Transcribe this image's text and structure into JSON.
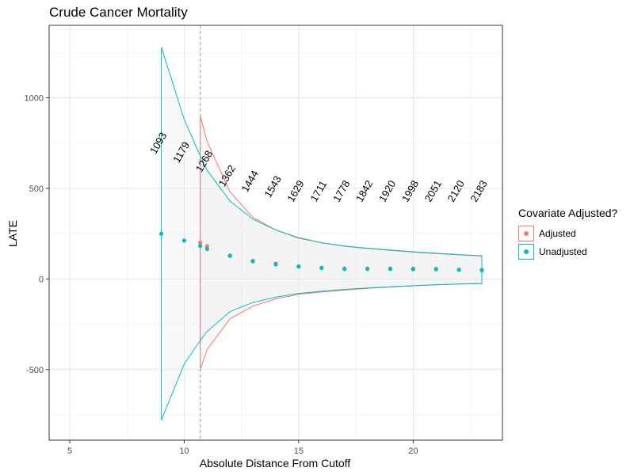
{
  "chart_data": {
    "type": "scatter",
    "title": "Crude Cancer Mortality",
    "xlabel": "Absolute Distance From Cutoff",
    "ylabel": "LATE",
    "xlim": [
      4.1,
      23.9
    ],
    "ylim": [
      -890,
      1400
    ],
    "x_ticks": [
      5,
      10,
      15,
      20
    ],
    "y_ticks": [
      -500,
      0,
      500,
      1000
    ],
    "grid": true,
    "cutoff_line_x": 10.7,
    "legend_title": "Covariate Adjusted?",
    "legend_position": "right",
    "series": [
      {
        "name": "Adjusted",
        "color": "#F8766D",
        "points": [
          {
            "x": 10.7,
            "y": 200
          },
          {
            "x": 11,
            "y": 180
          },
          {
            "x": 12,
            "y": 130
          },
          {
            "x": 13,
            "y": 100
          },
          {
            "x": 14,
            "y": 85
          },
          {
            "x": 15,
            "y": 70
          },
          {
            "x": 16,
            "y": 62
          },
          {
            "x": 17,
            "y": 58
          },
          {
            "x": 18,
            "y": 58
          },
          {
            "x": 19,
            "y": 58
          },
          {
            "x": 20,
            "y": 57
          },
          {
            "x": 21,
            "y": 55
          },
          {
            "x": 22,
            "y": 52
          },
          {
            "x": 23,
            "y": 50
          }
        ],
        "ci_upper": [
          {
            "x": 10.7,
            "y": 900
          },
          {
            "x": 11,
            "y": 760
          },
          {
            "x": 12,
            "y": 480
          },
          {
            "x": 13,
            "y": 340
          },
          {
            "x": 14,
            "y": 270
          },
          {
            "x": 15,
            "y": 225
          },
          {
            "x": 16,
            "y": 200
          },
          {
            "x": 17,
            "y": 180
          },
          {
            "x": 18,
            "y": 168
          },
          {
            "x": 19,
            "y": 158
          },
          {
            "x": 20,
            "y": 148
          },
          {
            "x": 21,
            "y": 140
          },
          {
            "x": 22,
            "y": 133
          },
          {
            "x": 23,
            "y": 126
          }
        ],
        "ci_lower": [
          {
            "x": 10.7,
            "y": -500
          },
          {
            "x": 11,
            "y": -390
          },
          {
            "x": 12,
            "y": -220
          },
          {
            "x": 13,
            "y": -150
          },
          {
            "x": 14,
            "y": -110
          },
          {
            "x": 15,
            "y": -85
          },
          {
            "x": 16,
            "y": -72
          },
          {
            "x": 17,
            "y": -62
          },
          {
            "x": 18,
            "y": -52
          },
          {
            "x": 19,
            "y": -45
          },
          {
            "x": 20,
            "y": -38
          },
          {
            "x": 21,
            "y": -33
          },
          {
            "x": 22,
            "y": -28
          },
          {
            "x": 23,
            "y": -24
          }
        ]
      },
      {
        "name": "Unadjusted",
        "color": "#00BFC4",
        "points": [
          {
            "x": 9,
            "y": 250
          },
          {
            "x": 10,
            "y": 212
          },
          {
            "x": 10.7,
            "y": 182
          },
          {
            "x": 11,
            "y": 165
          },
          {
            "x": 12,
            "y": 127
          },
          {
            "x": 13,
            "y": 97
          },
          {
            "x": 14,
            "y": 80
          },
          {
            "x": 15,
            "y": 68
          },
          {
            "x": 16,
            "y": 60
          },
          {
            "x": 17,
            "y": 55
          },
          {
            "x": 18,
            "y": 55
          },
          {
            "x": 19,
            "y": 55
          },
          {
            "x": 20,
            "y": 54
          },
          {
            "x": 21,
            "y": 53
          },
          {
            "x": 22,
            "y": 50
          },
          {
            "x": 23,
            "y": 48
          }
        ],
        "ci_upper": [
          {
            "x": 9,
            "y": 1280
          },
          {
            "x": 10,
            "y": 880
          },
          {
            "x": 10.7,
            "y": 680
          },
          {
            "x": 11,
            "y": 600
          },
          {
            "x": 12,
            "y": 430
          },
          {
            "x": 13,
            "y": 330
          },
          {
            "x": 14,
            "y": 270
          },
          {
            "x": 15,
            "y": 228
          },
          {
            "x": 16,
            "y": 200
          },
          {
            "x": 17,
            "y": 182
          },
          {
            "x": 18,
            "y": 170
          },
          {
            "x": 19,
            "y": 160
          },
          {
            "x": 20,
            "y": 150
          },
          {
            "x": 21,
            "y": 142
          },
          {
            "x": 22,
            "y": 135
          },
          {
            "x": 23,
            "y": 128
          }
        ],
        "ci_lower": [
          {
            "x": 9,
            "y": -780
          },
          {
            "x": 10,
            "y": -470
          },
          {
            "x": 10.7,
            "y": -340
          },
          {
            "x": 11,
            "y": -290
          },
          {
            "x": 12,
            "y": -180
          },
          {
            "x": 13,
            "y": -130
          },
          {
            "x": 14,
            "y": -100
          },
          {
            "x": 15,
            "y": -80
          },
          {
            "x": 16,
            "y": -68
          },
          {
            "x": 17,
            "y": -58
          },
          {
            "x": 18,
            "y": -50
          },
          {
            "x": 19,
            "y": -43
          },
          {
            "x": 20,
            "y": -37
          },
          {
            "x": 21,
            "y": -32
          },
          {
            "x": 22,
            "y": -28
          },
          {
            "x": 23,
            "y": -26
          }
        ]
      }
    ],
    "annotations": [
      {
        "x": 9,
        "y": 740,
        "text": "1093"
      },
      {
        "x": 10,
        "y": 690,
        "text": "1179"
      },
      {
        "x": 11,
        "y": 640,
        "text": "1268"
      },
      {
        "x": 12,
        "y": 560,
        "text": "1362"
      },
      {
        "x": 13,
        "y": 530,
        "text": "1444"
      },
      {
        "x": 14,
        "y": 500,
        "text": "1543"
      },
      {
        "x": 15,
        "y": 475,
        "text": "1629"
      },
      {
        "x": 16,
        "y": 475,
        "text": "1711"
      },
      {
        "x": 17,
        "y": 475,
        "text": "1778"
      },
      {
        "x": 18,
        "y": 475,
        "text": "1842"
      },
      {
        "x": 19,
        "y": 475,
        "text": "1920"
      },
      {
        "x": 20,
        "y": 475,
        "text": "1998"
      },
      {
        "x": 21,
        "y": 475,
        "text": "2051"
      },
      {
        "x": 22,
        "y": 475,
        "text": "2120"
      },
      {
        "x": 23,
        "y": 475,
        "text": "2183"
      }
    ]
  }
}
